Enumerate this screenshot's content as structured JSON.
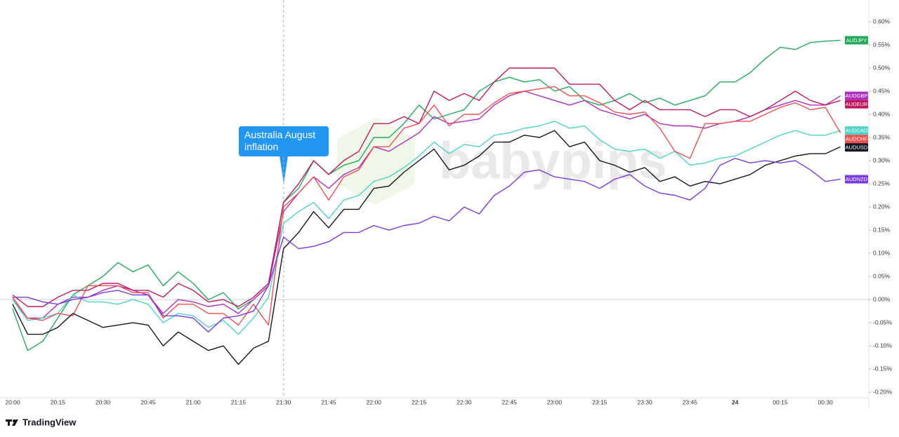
{
  "chart_data": {
    "type": "line",
    "annotation": "Australia August inflation",
    "watermark": "babypips",
    "brand": "TradingView",
    "zero_line": true,
    "grid": false,
    "categories": [
      "20:00",
      null,
      null,
      "20:15",
      null,
      null,
      "20:30",
      null,
      null,
      "20:45",
      null,
      null,
      "21:00",
      null,
      null,
      "21:15",
      null,
      null,
      "21:30",
      null,
      null,
      "21:45",
      null,
      null,
      "22:00",
      null,
      null,
      "22:15",
      null,
      null,
      "22:30",
      null,
      null,
      "22:45",
      null,
      null,
      "23:00",
      null,
      null,
      "23:15",
      null,
      null,
      "23:30",
      null,
      null,
      "23:45",
      null,
      null,
      "24",
      null,
      null,
      "00:15",
      null,
      null,
      "00:30",
      null
    ],
    "ylim": [
      -0.212,
      0.647
    ],
    "yticks": [
      {
        "value": -0.2,
        "label": "-0.20%"
      },
      {
        "value": -0.15,
        "label": "-0.15%"
      },
      {
        "value": -0.1,
        "label": "-0.10%"
      },
      {
        "value": -0.05,
        "label": "-0.05%"
      },
      {
        "value": 0,
        "label": "0.00%"
      },
      {
        "value": 0.05,
        "label": "0.05%"
      },
      {
        "value": 0.1,
        "label": "0.10%"
      },
      {
        "value": 0.15,
        "label": "0.15%"
      },
      {
        "value": 0.2,
        "label": "0.20%"
      },
      {
        "value": 0.25,
        "label": "0.25%"
      },
      {
        "value": 0.3,
        "label": "0.30%"
      },
      {
        "value": 0.35,
        "label": "0.35%"
      },
      {
        "value": 0.4,
        "label": "0.40%"
      },
      {
        "value": 0.45,
        "label": "0.45%"
      },
      {
        "value": 0.5,
        "label": "0.50%"
      },
      {
        "value": 0.55,
        "label": "0.55%"
      },
      {
        "value": 0.6,
        "label": "0.60%"
      }
    ],
    "series": [
      {
        "name": "AUDJPY",
        "color": "#22ab5c",
        "values": [
          -0.02,
          -0.11,
          -0.09,
          -0.04,
          0.01,
          0.03,
          0.05,
          0.08,
          0.06,
          0.075,
          0.03,
          0.06,
          0.035,
          0,
          0.015,
          -0.02,
          0,
          0.03,
          0.21,
          0.24,
          0.3,
          0.27,
          0.29,
          0.3,
          0.35,
          0.35,
          0.38,
          0.42,
          0.39,
          0.4,
          0.41,
          0.45,
          0.47,
          0.48,
          0.47,
          0.475,
          0.45,
          0.46,
          0.43,
          0.42,
          0.43,
          0.445,
          0.425,
          0.435,
          0.42,
          0.43,
          0.44,
          0.47,
          0.47,
          0.49,
          0.52,
          0.545,
          0.54,
          0.555,
          0.558,
          0.56
        ]
      },
      {
        "name": "AUDGBP",
        "color": "#b02fc0",
        "values": [
          0,
          -0.04,
          -0.04,
          -0.01,
          0.005,
          0.005,
          0.02,
          0.03,
          0.02,
          0.01,
          -0.03,
          0,
          -0.005,
          -0.015,
          -0.01,
          -0.03,
          0,
          0.03,
          0.19,
          0.23,
          0.265,
          0.24,
          0.27,
          0.285,
          0.33,
          0.32,
          0.34,
          0.36,
          0.395,
          0.38,
          0.385,
          0.39,
          0.42,
          0.44,
          0.45,
          0.44,
          0.43,
          0.42,
          0.43,
          0.41,
          0.4,
          0.39,
          0.4,
          0.38,
          0.375,
          0.375,
          0.37,
          0.38,
          0.385,
          0.395,
          0.41,
          0.42,
          0.43,
          0.42,
          0.42,
          0.44
        ]
      },
      {
        "name": "AUDEUR",
        "color": "#c2185b",
        "values": [
          0.01,
          -0.015,
          -0.015,
          0.005,
          0.02,
          0.02,
          0.035,
          0.035,
          0.02,
          0.02,
          0.005,
          0.035,
          0.02,
          -0.005,
          0,
          -0.015,
          0.005,
          0.035,
          0.21,
          0.25,
          0.3,
          0.27,
          0.3,
          0.32,
          0.38,
          0.38,
          0.395,
          0.38,
          0.45,
          0.43,
          0.445,
          0.43,
          0.47,
          0.5,
          0.5,
          0.5,
          0.5,
          0.465,
          0.465,
          0.465,
          0.43,
          0.41,
          0.43,
          0.41,
          0.41,
          0.41,
          0.395,
          0.41,
          0.41,
          0.395,
          0.41,
          0.43,
          0.45,
          0.43,
          0.42,
          0.43
        ]
      },
      {
        "name": "AUDCAD",
        "color": "#4dd4c6",
        "values": [
          0,
          -0.045,
          -0.04,
          -0.03,
          0.01,
          -0.005,
          -0.005,
          -0.01,
          0,
          -0.01,
          -0.05,
          -0.03,
          -0.035,
          -0.06,
          -0.045,
          -0.075,
          -0.04,
          0.005,
          0.165,
          0.19,
          0.21,
          0.175,
          0.215,
          0.225,
          0.255,
          0.265,
          0.285,
          0.31,
          0.34,
          0.315,
          0.335,
          0.33,
          0.355,
          0.36,
          0.37,
          0.375,
          0.385,
          0.37,
          0.375,
          0.345,
          0.325,
          0.32,
          0.325,
          0.305,
          0.32,
          0.29,
          0.295,
          0.305,
          0.31,
          0.325,
          0.34,
          0.355,
          0.365,
          0.355,
          0.355,
          0.365
        ]
      },
      {
        "name": "AUDCHF",
        "color": "#ef4f4f",
        "values": [
          0.005,
          -0.04,
          -0.045,
          -0.03,
          -0.035,
          0.03,
          0.03,
          0.03,
          0.015,
          0.015,
          -0.04,
          -0.01,
          -0.01,
          -0.03,
          -0.03,
          -0.055,
          -0.01,
          -0.055,
          0.2,
          0.23,
          0.265,
          0.215,
          0.265,
          0.28,
          0.33,
          0.33,
          0.37,
          0.38,
          0.42,
          0.375,
          0.4,
          0.4,
          0.425,
          0.445,
          0.45,
          0.455,
          0.46,
          0.44,
          0.44,
          0.425,
          0.405,
          0.4,
          0.405,
          0.37,
          0.32,
          0.305,
          0.38,
          0.38,
          0.385,
          0.385,
          0.4,
          0.415,
          0.425,
          0.41,
          0.415,
          0.36
        ]
      },
      {
        "name": "AUDUSD",
        "color": "#131722",
        "values": [
          -0.01,
          -0.075,
          -0.075,
          -0.06,
          -0.03,
          -0.045,
          -0.06,
          -0.055,
          -0.05,
          -0.055,
          -0.1,
          -0.07,
          -0.09,
          -0.11,
          -0.1,
          -0.14,
          -0.105,
          -0.09,
          0.11,
          0.145,
          0.19,
          0.155,
          0.195,
          0.195,
          0.24,
          0.245,
          0.275,
          0.3,
          0.325,
          0.28,
          0.29,
          0.31,
          0.34,
          0.34,
          0.355,
          0.35,
          0.365,
          0.33,
          0.34,
          0.3,
          0.29,
          0.275,
          0.285,
          0.255,
          0.265,
          0.245,
          0.255,
          0.25,
          0.26,
          0.27,
          0.29,
          0.3,
          0.31,
          0.315,
          0.315,
          0.33
        ]
      },
      {
        "name": "AUDNZD",
        "color": "#7a3cdf",
        "values": [
          0.005,
          0.005,
          -0.005,
          -0.01,
          0,
          0.005,
          0.015,
          0.02,
          0.01,
          0.01,
          -0.035,
          -0.035,
          -0.04,
          -0.07,
          -0.04,
          -0.035,
          -0.025,
          0.03,
          0.135,
          0.11,
          0.115,
          0.125,
          0.145,
          0.145,
          0.16,
          0.15,
          0.16,
          0.165,
          0.18,
          0.17,
          0.2,
          0.185,
          0.225,
          0.245,
          0.275,
          0.28,
          0.265,
          0.26,
          0.255,
          0.24,
          0.26,
          0.27,
          0.245,
          0.23,
          0.225,
          0.215,
          0.24,
          0.29,
          0.305,
          0.295,
          0.3,
          0.295,
          0.3,
          0.28,
          0.255,
          0.26
        ]
      }
    ]
  }
}
